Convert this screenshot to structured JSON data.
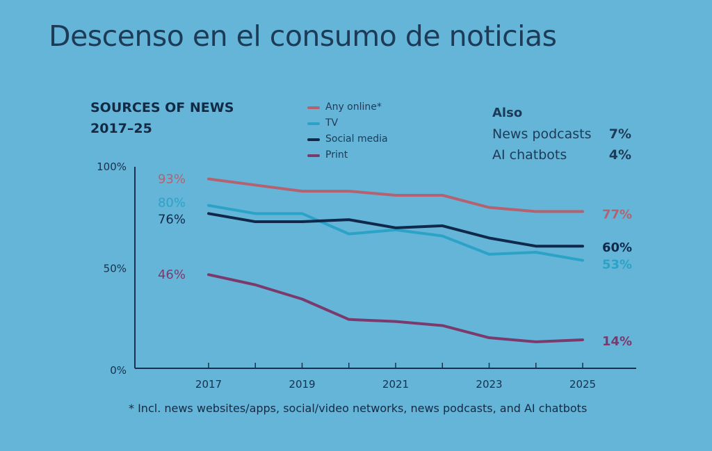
{
  "slide_title": "Descenso en el consumo de noticias",
  "chart_data": {
    "type": "line",
    "title": "SOURCES OF NEWS",
    "subtitle": "2017–25",
    "x": [
      2017,
      2018,
      2019,
      2020,
      2021,
      2022,
      2023,
      2024,
      2025
    ],
    "x_tick_labels": [
      "2017",
      "2019",
      "2021",
      "2023",
      "2025"
    ],
    "y_tick_labels": [
      "100%",
      "50%",
      "0%"
    ],
    "ylim": [
      0,
      100
    ],
    "legend_position": "top-center",
    "series": [
      {
        "name": "Any online*",
        "color": "#b4626f",
        "values": [
          93,
          90,
          87,
          87,
          85,
          85,
          79,
          77,
          77
        ],
        "start_label": "93%",
        "end_label": "77%"
      },
      {
        "name": "TV",
        "color": "#2ba3c6",
        "values": [
          80,
          76,
          76,
          66,
          68,
          65,
          56,
          57,
          53
        ],
        "start_label": "80%",
        "end_label": "53%"
      },
      {
        "name": "Social media",
        "color": "#10294a",
        "values": [
          76,
          72,
          72,
          73,
          69,
          70,
          64,
          60,
          60
        ],
        "start_label": "76%",
        "end_label": "60%"
      },
      {
        "name": "Print",
        "color": "#7b3a6c",
        "values": [
          46,
          41,
          34,
          24,
          23,
          21,
          15,
          13,
          14
        ],
        "start_label": "46%",
        "end_label": "14%"
      }
    ],
    "also": {
      "heading": "Also",
      "items": [
        {
          "label": "News podcasts",
          "value": "7%"
        },
        {
          "label": "AI chatbots",
          "value": "4%"
        }
      ]
    },
    "footnote": "* Incl. news websites/apps, social/video networks, news podcasts, and AI chatbots"
  }
}
